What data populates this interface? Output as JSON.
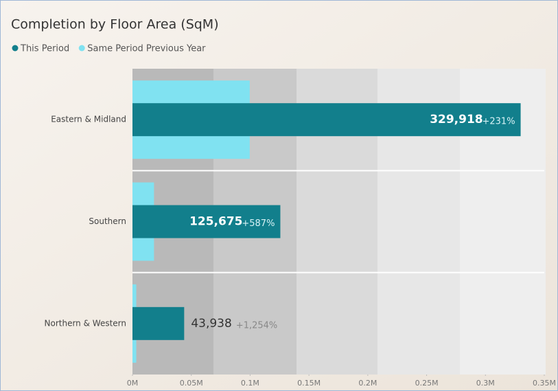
{
  "chart_data": {
    "type": "hbar",
    "title": "Completion by Floor Area (SqM)",
    "categories": [
      "Eastern & Midland",
      "Southern",
      "Northern & Western"
    ],
    "series": [
      {
        "name": "This Period",
        "color": "#127f8c",
        "values": [
          329918,
          125675,
          43938
        ],
        "value_labels": [
          "329,918",
          "125,675",
          "43,938"
        ],
        "change_labels": [
          "+231%",
          "+587%",
          "+1,254%"
        ]
      },
      {
        "name": "Same Period Previous Year",
        "color": "#80e2f1",
        "values": [
          99673,
          18293,
          3245
        ]
      }
    ],
    "xlim": [
      0,
      350000
    ],
    "xticks": [
      {
        "value": 0,
        "label": "0M"
      },
      {
        "value": 50000,
        "label": "0.05M"
      },
      {
        "value": 100000,
        "label": "0.1M"
      },
      {
        "value": 150000,
        "label": "0.15M"
      },
      {
        "value": 200000,
        "label": "0.2M"
      },
      {
        "value": 250000,
        "label": "0.25M"
      },
      {
        "value": 300000,
        "label": "0.3M"
      },
      {
        "value": 350000,
        "label": "0.35M"
      }
    ],
    "legend": "top-left"
  }
}
